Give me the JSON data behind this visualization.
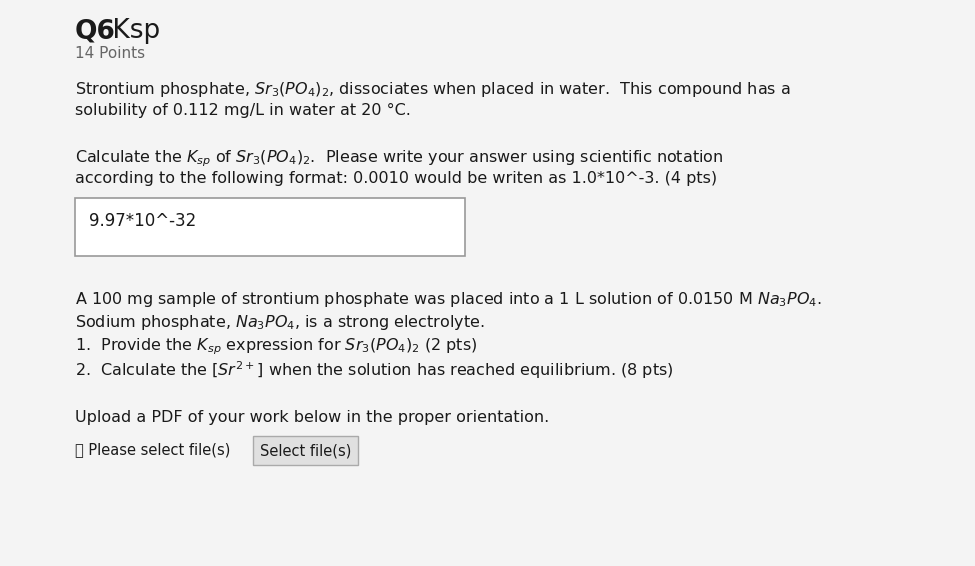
{
  "bg_color": "#f4f4f4",
  "title_bold": "Q6",
  "title_normal": " Ksp",
  "subtitle": "14 Points",
  "para1_line1": "Strontium phosphate, $\\mathit{Sr}_3(\\mathit{PO}_4)_2$, dissociates when placed in water.  This compound has a",
  "para1_line2": "solubility of 0.112 mg/L in water at 20 °C.",
  "para2_line1": "Calculate the $\\mathit{K}_{sp}$ of $\\mathit{Sr}_3(\\mathit{PO}_4)_2$.  Please write your answer using scientific notation",
  "para2_line2": "according to the following format: 0.0010 would be writen as 1.0*10^-3. (4 pts)",
  "answer_box_text": "9.97*10^-32",
  "para3_line1": "A 100 mg sample of strontium phosphate was placed into a 1 L solution of 0.0150 M $\\mathit{Na}_3\\mathit{PO}_4$.",
  "para3_line2": "Sodium phosphate, $\\mathit{Na}_3\\mathit{PO}_4$, is a strong electrolyte.",
  "item1": "1.  Provide the $\\mathit{K}_{sp}$ expression for $\\mathit{Sr}_3(\\mathit{PO}_4)_2$ (2 pts)",
  "item2": "2.  Calculate the $[\\mathit{Sr}^{2+}]$ when the solution has reached equilibrium. (8 pts)",
  "upload_text": "Upload a PDF of your work below in the proper orientation.",
  "btn_label": "Select file(s)",
  "file_label": "Please select file(s)",
  "text_color": "#1a1a1a",
  "subtitle_color": "#666666",
  "box_border_color": "#999999",
  "btn_bg_color": "#e0e0e0",
  "btn_border_color": "#aaaaaa",
  "lm": 75,
  "fs_title": 19,
  "fs_body": 11.5,
  "fs_subtitle": 11,
  "fs_btn": 10.5
}
